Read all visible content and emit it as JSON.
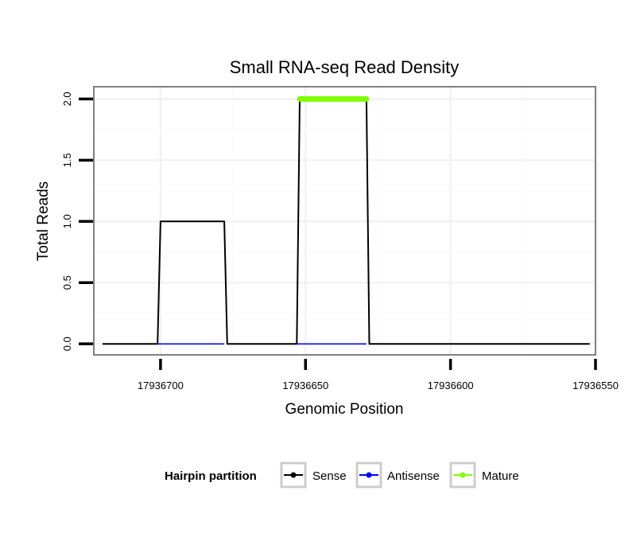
{
  "chart_data": {
    "type": "line",
    "title": "Small RNA-seq Read Density",
    "xlabel": "Genomic Position",
    "ylabel": "Total Reads",
    "x_reversed": true,
    "xlim": [
      17936723,
      17936550
    ],
    "ylim": [
      -0.09,
      2.1
    ],
    "x_ticks": [
      17936700,
      17936650,
      17936600,
      17936550
    ],
    "x_tick_labels": [
      "17936700",
      "17936650",
      "17936600",
      "17936550"
    ],
    "y_ticks": [
      0.0,
      0.5,
      1.0,
      1.5,
      2.0
    ],
    "y_tick_labels": [
      "0.0",
      "0.5",
      "1.0",
      "1.5",
      "2.0"
    ],
    "grid": true,
    "legend": {
      "title": "Hairpin partition",
      "position": "bottom",
      "entries": [
        {
          "name": "Sense",
          "color": "#000000"
        },
        {
          "name": "Antisense",
          "color": "#0000ff"
        },
        {
          "name": "Mature",
          "color": "#7fff00"
        }
      ]
    },
    "series": [
      {
        "name": "Sense",
        "color": "#000000",
        "x": [
          17936720,
          17936701,
          17936700,
          17936678,
          17936677,
          17936653,
          17936652,
          17936629,
          17936628,
          17936552
        ],
        "y": [
          0,
          0,
          1,
          1,
          0,
          0,
          2,
          2,
          0,
          0
        ]
      },
      {
        "name": "Antisense",
        "color": "#0000ff",
        "segments": [
          {
            "x": [
              17936701,
              17936678
            ],
            "y": [
              0,
              0
            ]
          },
          {
            "x": [
              17936653,
              17936629
            ],
            "y": [
              0,
              0
            ]
          }
        ]
      },
      {
        "name": "Mature",
        "color": "#7fff00",
        "x": [
          17936652,
          17936629
        ],
        "y": [
          2,
          2
        ]
      }
    ]
  }
}
